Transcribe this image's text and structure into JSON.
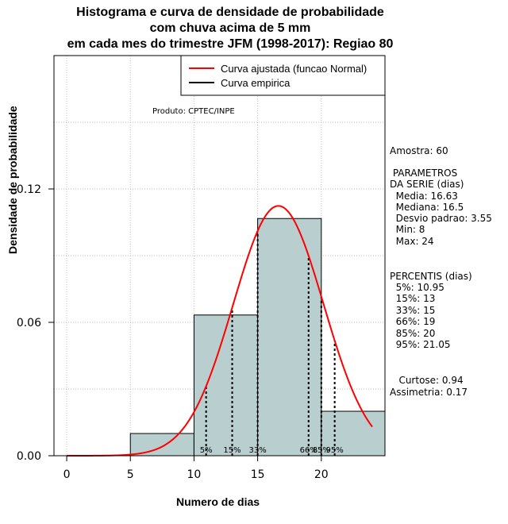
{
  "chart_data": {
    "type": "histogram",
    "title_lines": [
      "Histograma e curva de densidade de probabilidade",
      "com chuva acima de 5 mm",
      "em cada mes do trimestre JFM (1998-2017): Regiao 80"
    ],
    "xlabel": "Numero de dias",
    "ylabel": "Densidade de probabilidade",
    "xlim": [
      -1,
      25
    ],
    "ylim": [
      0,
      0.18
    ],
    "x_ticks": [
      0,
      5,
      10,
      15,
      20
    ],
    "y_ticks": [
      "0.00",
      "0.06",
      "0.12"
    ],
    "grid": true,
    "bins": [
      {
        "from": 5,
        "to": 10,
        "density": 0.01
      },
      {
        "from": 10,
        "to": 15,
        "density": 0.0633
      },
      {
        "from": 15,
        "to": 20,
        "density": 0.1067
      },
      {
        "from": 20,
        "to": 25,
        "density": 0.02
      }
    ],
    "normal_curve": {
      "mean": 16.63,
      "sd": 3.55,
      "x_from": 0,
      "x_to": 24,
      "color": "#ff0000"
    },
    "bar_color": "#b8cecf",
    "percentile_lines": [
      {
        "label": "5%",
        "x": 10.95
      },
      {
        "label": "15%",
        "x": 13
      },
      {
        "label": "33%",
        "x": 15
      },
      {
        "label": "66%",
        "x": 19
      },
      {
        "label": "85%",
        "x": 20
      },
      {
        "label": "95%",
        "x": 21.05
      }
    ],
    "legend": {
      "placement": "top-right",
      "entries": [
        {
          "label": "Curva ajustada (funcao Normal)",
          "color": "#ff0000"
        },
        {
          "label": "Curva empirica",
          "color": "#000000"
        }
      ]
    },
    "annotation": "Produto: CPTEC/INPE"
  },
  "side_panel": {
    "amostra": "Amostra: 60",
    "params_title_1": " PARAMETROS",
    "params_title_2": "DA SERIE (dias)",
    "media": "  Media: 16.63",
    "mediana": "  Mediana: 16.5",
    "desvio": "  Desvio padrao: 3.55",
    "min": "  Min: 8",
    "max": "  Max: 24",
    "perc_title": "PERCENTIS (dias)",
    "p5": "  5%: 10.95",
    "p15": "  15%: 13",
    "p33": "  33%: 15",
    "p66": "  66%: 19",
    "p85": "  85%: 20",
    "p95": "  95%: 21.05",
    "curtose": "   Curtose: 0.94",
    "assimetria": "Assimetria: 0.17"
  }
}
